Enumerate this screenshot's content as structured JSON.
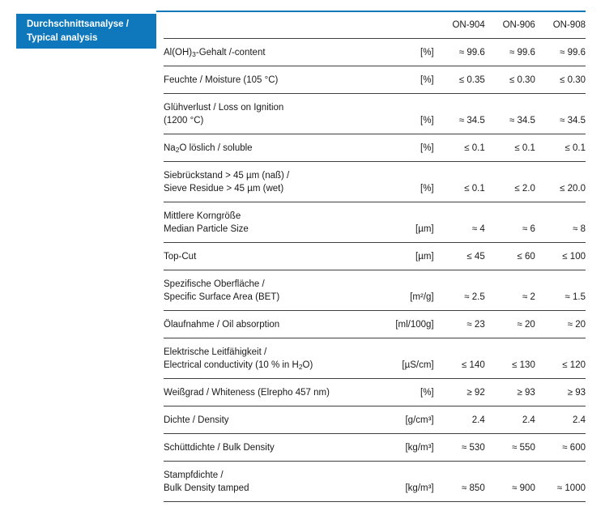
{
  "colors": {
    "accent": "#0f78bd",
    "rule": "#3f3f3f",
    "text": "#1a1a1a"
  },
  "section_label": {
    "line1": "Durchschnittsanalyse /",
    "line2": "Typical analysis"
  },
  "table": {
    "columns": [
      "ON-904",
      "ON-906",
      "ON-908"
    ],
    "rows": [
      {
        "label_lines": [
          [
            {
              "t": "Al(OH)"
            },
            {
              "t": "3",
              "m": "sub"
            },
            {
              "t": "-Gehalt /-content"
            }
          ]
        ],
        "unit": "[%]",
        "values": [
          "≈ 99.6",
          "≈ 99.6",
          "≈ 99.6"
        ]
      },
      {
        "label_lines": [
          [
            {
              "t": "Feuchte / Moisture (105 °C)"
            }
          ]
        ],
        "unit": "[%]",
        "values": [
          "≤ 0.35",
          "≤ 0.30",
          "≤ 0.30"
        ]
      },
      {
        "label_lines": [
          [
            {
              "t": "Glühverlust / Loss on Ignition"
            }
          ],
          [
            {
              "t": "(1200 °C)"
            }
          ]
        ],
        "unit": "[%]",
        "values": [
          "≈ 34.5",
          "≈ 34.5",
          "≈ 34.5"
        ]
      },
      {
        "label_lines": [
          [
            {
              "t": "Na"
            },
            {
              "t": "2",
              "m": "sub"
            },
            {
              "t": "O löslich / soluble"
            }
          ]
        ],
        "unit": "[%]",
        "values": [
          "≤ 0.1",
          "≤ 0.1",
          "≤ 0.1"
        ]
      },
      {
        "label_lines": [
          [
            {
              "t": "Siebrückstand > 45 µm (naß) /"
            }
          ],
          [
            {
              "t": "Sieve Residue > 45 µm (wet)"
            }
          ]
        ],
        "unit": "[%]",
        "values": [
          "≤ 0.1",
          "≤ 2.0",
          "≤ 20.0"
        ]
      },
      {
        "label_lines": [
          [
            {
              "t": "Mittlere Korngröße"
            }
          ],
          [
            {
              "t": "Median Particle Size"
            }
          ]
        ],
        "unit": "[µm]",
        "values": [
          "≈ 4",
          "≈ 6",
          "≈ 8"
        ]
      },
      {
        "label_lines": [
          [
            {
              "t": "Top-Cut"
            }
          ]
        ],
        "unit": "[µm]",
        "values": [
          "≤ 45",
          "≤ 60",
          "≤ 100"
        ]
      },
      {
        "label_lines": [
          [
            {
              "t": "Spezifische Oberfläche /"
            }
          ],
          [
            {
              "t": "Specific Surface Area (BET)"
            }
          ]
        ],
        "unit": "[m²/g]",
        "values": [
          "≈ 2.5",
          "≈ 2",
          "≈ 1.5"
        ]
      },
      {
        "label_lines": [
          [
            {
              "t": "Ölaufnahme / Oil absorption"
            }
          ]
        ],
        "unit": "[ml/100g]",
        "values": [
          "≈ 23",
          "≈ 20",
          "≈ 20"
        ]
      },
      {
        "label_lines": [
          [
            {
              "t": "Elektrische Leitfähigkeit /"
            }
          ],
          [
            {
              "t": "Electrical conductivity (10 % in H"
            },
            {
              "t": "2",
              "m": "sub"
            },
            {
              "t": "O)"
            }
          ]
        ],
        "unit": "[µS/cm]",
        "values": [
          "≤ 140",
          "≤ 130",
          "≤ 120"
        ]
      },
      {
        "label_lines": [
          [
            {
              "t": "Weißgrad / Whiteness (Elrepho 457 nm)"
            }
          ]
        ],
        "unit": "[%]",
        "values": [
          "≥ 92",
          "≥ 93",
          "≥ 93"
        ]
      },
      {
        "label_lines": [
          [
            {
              "t": "Dichte / Density"
            }
          ]
        ],
        "unit": "[g/cm³]",
        "values": [
          "2.4",
          "2.4",
          "2.4"
        ]
      },
      {
        "label_lines": [
          [
            {
              "t": "Schüttdichte / Bulk Density"
            }
          ]
        ],
        "unit": "[kg/m³]",
        "values": [
          "≈ 530",
          "≈ 550",
          "≈ 600"
        ]
      },
      {
        "label_lines": [
          [
            {
              "t": "Stampfdichte /"
            }
          ],
          [
            {
              "t": "Bulk Density tamped"
            }
          ]
        ],
        "unit": "[kg/m³]",
        "values": [
          "≈ 850",
          "≈ 900",
          "≈ 1000"
        ]
      }
    ]
  }
}
